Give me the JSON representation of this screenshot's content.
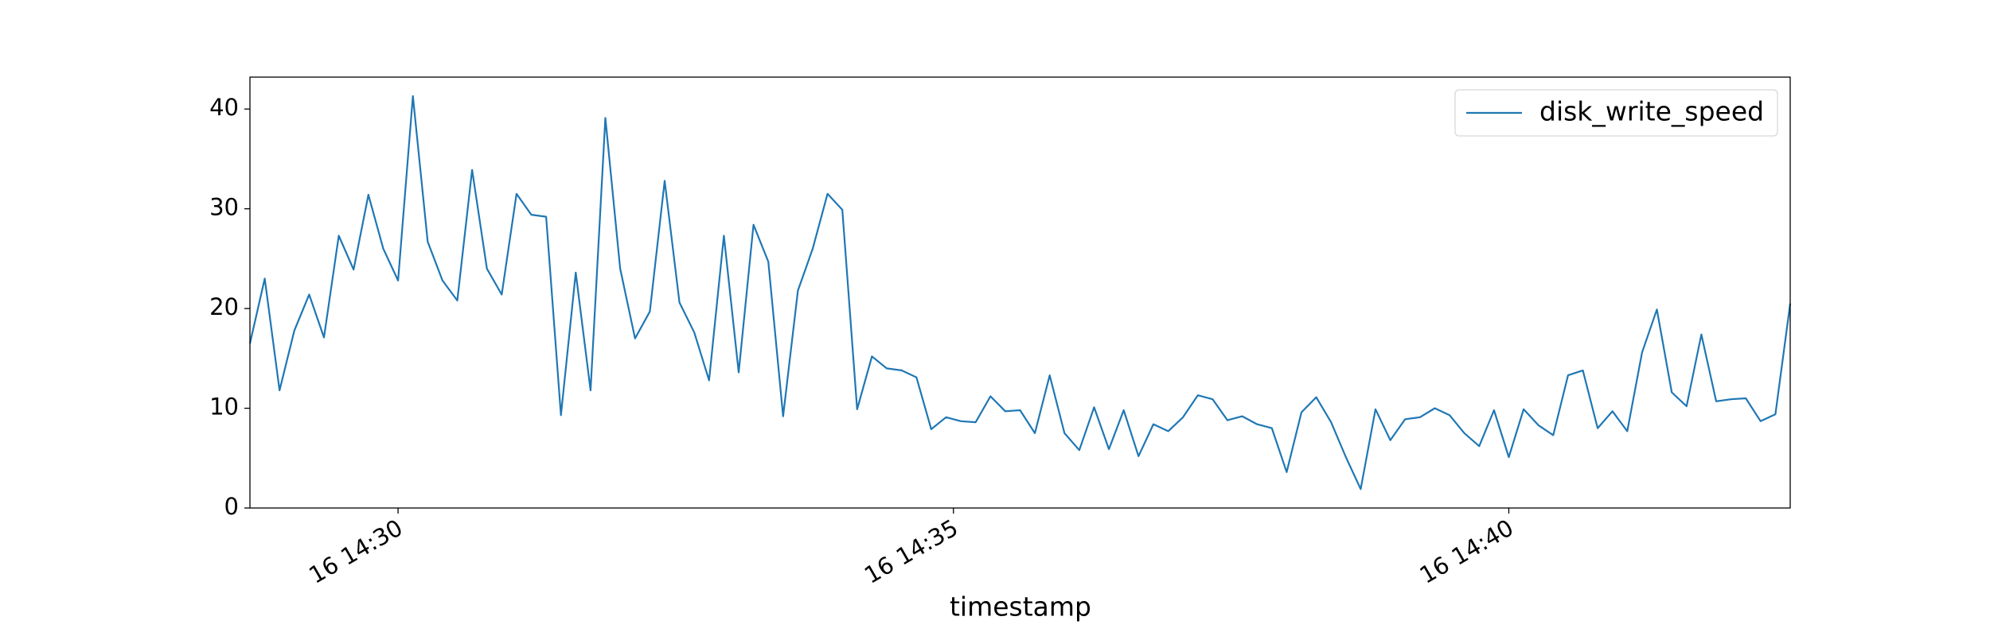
{
  "chart_data": {
    "type": "line",
    "xlabel": "timestamp",
    "legend": "upper right",
    "grid": false,
    "x": [
      "16 14:28:40",
      "16 14:28:48",
      "16 14:28:56",
      "16 14:29:04",
      "16 14:29:12",
      "16 14:29:20",
      "16 14:29:28",
      "16 14:29:36",
      "16 14:29:44",
      "16 14:29:52",
      "16 14:30:00",
      "16 14:30:08",
      "16 14:30:16",
      "16 14:30:24",
      "16 14:30:32",
      "16 14:30:40",
      "16 14:30:48",
      "16 14:30:56",
      "16 14:31:04",
      "16 14:31:12",
      "16 14:31:20",
      "16 14:31:28",
      "16 14:31:36",
      "16 14:31:44",
      "16 14:31:52",
      "16 14:32:00",
      "16 14:32:08",
      "16 14:32:16",
      "16 14:32:24",
      "16 14:32:32",
      "16 14:32:40",
      "16 14:32:48",
      "16 14:32:56",
      "16 14:33:04",
      "16 14:33:12",
      "16 14:33:20",
      "16 14:33:28",
      "16 14:33:36",
      "16 14:33:44",
      "16 14:33:52",
      "16 14:34:00",
      "16 14:34:08",
      "16 14:34:16",
      "16 14:34:24",
      "16 14:34:32",
      "16 14:34:40",
      "16 14:34:48",
      "16 14:34:56",
      "16 14:35:04",
      "16 14:35:12",
      "16 14:35:20",
      "16 14:35:28",
      "16 14:35:36",
      "16 14:35:44",
      "16 14:35:52",
      "16 14:36:00",
      "16 14:36:08",
      "16 14:36:16",
      "16 14:36:24",
      "16 14:36:32",
      "16 14:36:40",
      "16 14:36:48",
      "16 14:36:56",
      "16 14:37:04",
      "16 14:37:12",
      "16 14:37:20",
      "16 14:37:28",
      "16 14:37:36",
      "16 14:37:44",
      "16 14:37:52",
      "16 14:38:00",
      "16 14:38:08",
      "16 14:38:16",
      "16 14:38:24",
      "16 14:38:32",
      "16 14:38:40",
      "16 14:38:48",
      "16 14:38:56",
      "16 14:39:04",
      "16 14:39:12",
      "16 14:39:20",
      "16 14:39:28",
      "16 14:39:36",
      "16 14:39:44",
      "16 14:39:52",
      "16 14:40:00",
      "16 14:40:08",
      "16 14:40:16",
      "16 14:40:24",
      "16 14:40:32",
      "16 14:40:40",
      "16 14:40:48",
      "16 14:40:56",
      "16 14:41:04",
      "16 14:41:12",
      "16 14:41:20",
      "16 14:41:28",
      "16 14:41:36",
      "16 14:41:44",
      "16 14:41:52",
      "16 14:42:00",
      "16 14:42:08",
      "16 14:42:16",
      "16 14:42:24",
      "16 14:42:32"
    ],
    "series": [
      {
        "name": "disk_write_speed",
        "color": "#1f77b4",
        "values": [
          16.5,
          23,
          11.8,
          17.8,
          21.4,
          17.1,
          27.3,
          23.9,
          31.4,
          26,
          22.8,
          41.3,
          26.7,
          22.8,
          20.8,
          33.9,
          24,
          21.4,
          31.5,
          29.4,
          29.2,
          9.3,
          23.6,
          11.8,
          39.1,
          24,
          17,
          19.7,
          32.8,
          20.6,
          17.6,
          12.8,
          27.3,
          13.6,
          28.4,
          24.7,
          9.2,
          21.8,
          26,
          31.5,
          29.9,
          9.9,
          15.2,
          14,
          13.8,
          13.1,
          7.9,
          9.1,
          8.7,
          8.6,
          11.2,
          9.7,
          9.8,
          7.5,
          13.3,
          7.5,
          5.8,
          10.1,
          5.9,
          9.8,
          5.2,
          8.4,
          7.7,
          9.1,
          11.3,
          10.9,
          8.8,
          9.2,
          8.4,
          8,
          3.6,
          9.6,
          11.1,
          8.6,
          5.1,
          1.9,
          9.9,
          6.8,
          8.9,
          9.1,
          10,
          9.3,
          7.5,
          6.2,
          9.8,
          5.1,
          9.9,
          8.3,
          7.3,
          13.3,
          13.8,
          8,
          9.7,
          7.7,
          15.6,
          19.9,
          11.6,
          10.2,
          17.4,
          10.7,
          10.9,
          11,
          8.7,
          9.4,
          20.5
        ]
      }
    ],
    "xlim": [
      "16 14:28:40",
      "16 14:42:32"
    ],
    "xticks": [
      "16 14:30",
      "16 14:35",
      "16 14:40"
    ],
    "ylim": [
      0,
      43.2
    ],
    "yticks": [
      0,
      10,
      20,
      30,
      40
    ]
  }
}
